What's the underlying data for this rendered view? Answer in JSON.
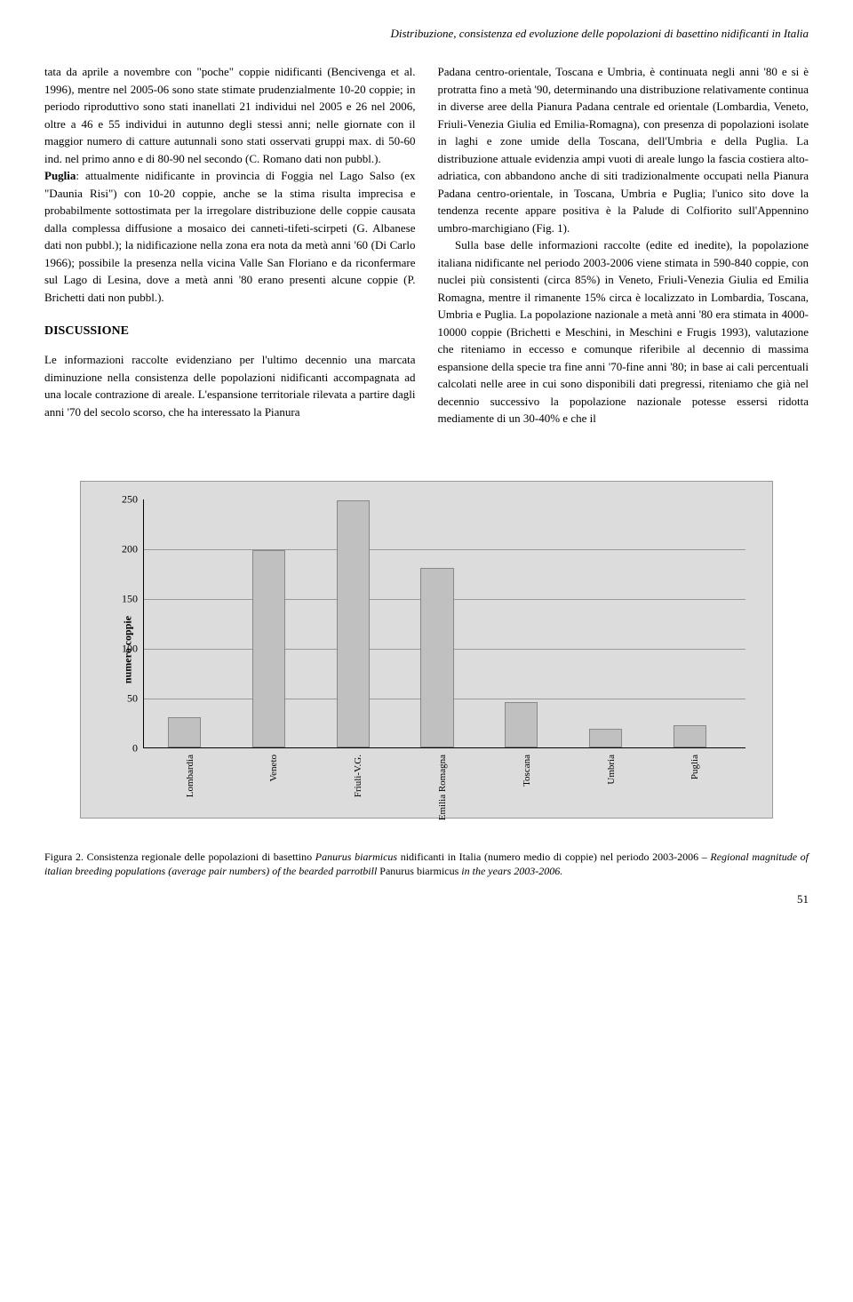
{
  "header_title": "Distribuzione, consistenza ed evoluzione delle popolazioni di basettino nidificanti in Italia",
  "left_column": {
    "para1": "tata da aprile a novembre con \"poche\" coppie nidificanti (Bencivenga et al. 1996), mentre nel 2005-06 sono state stimate prudenzialmente 10-20 coppie; in periodo riproduttivo sono stati inanellati 21 individui nel 2005 e 26 nel 2006, oltre a 46 e 55 individui in autunno degli stessi anni; nelle giornate con il maggior numero di catture autunnali sono stati osservati gruppi max. di 50-60 ind. nel primo anno e di 80-90 nel secondo (C. Romano dati non pubbl.).",
    "puglia_bold": "Puglia",
    "para2": ": attualmente nidificante in provincia di Foggia nel Lago Salso (ex \"Daunia Risi\") con 10-20 coppie, anche se la stima risulta imprecisa e probabilmente sottostimata per la irregolare distribuzione delle coppie causata dalla complessa diffusione a mosaico dei canneti-tifeti-scirpeti (G. Albanese dati non pubbl.); la nidificazione nella zona era nota da metà anni '60 (Di Carlo 1966); possibile la presenza nella vicina Valle San Floriano e da riconfermare sul Lago di Lesina, dove a metà anni '80 erano presenti alcune coppie (P. Brichetti dati non pubbl.).",
    "section_heading": "DISCUSSIONE",
    "para3": "Le informazioni raccolte evidenziano per l'ultimo decennio una marcata diminuzione nella consistenza delle popolazioni nidificanti accompagnata ad una locale contrazione di areale. L'espansione territoriale rilevata a partire dagli anni '70 del secolo scorso, che ha interessato la Pianura"
  },
  "right_column": {
    "para1": "Padana centro-orientale, Toscana e Umbria, è continuata negli anni '80 e si è protratta fino a metà '90, determinando una distribuzione relativamente continua in diverse aree della Pianura Padana centrale ed orientale (Lombardia, Veneto, Friuli-Venezia Giulia ed Emilia-Romagna), con presenza di popolazioni isolate in laghi e zone umide della Toscana, dell'Umbria e della Puglia. La distribuzione attuale evidenzia ampi vuoti di areale lungo la fascia costiera alto-adriatica, con abbandono anche di siti tradizionalmente occupati nella Pianura Padana centro-orientale, in Toscana, Umbria e Puglia; l'unico sito dove la tendenza recente appare positiva è la Palude di Colfiorito sull'Appennino umbro-marchigiano (Fig. 1).",
    "para2": "Sulla base delle informazioni raccolte (edite ed inedite), la popolazione italiana nidificante nel periodo 2003-2006 viene stimata in 590-840 coppie, con nuclei più consistenti (circa 85%) in Veneto, Friuli-Venezia Giulia ed Emilia Romagna, mentre il rimanente 15% circa è localizzato in Lombardia, Toscana, Umbria e Puglia. La popolazione nazionale a metà anni '80 era stimata in 4000-10000 coppie (Brichetti e Meschini, in Meschini e Frugis 1993), valutazione che riteniamo in eccesso e comunque riferibile al decennio di massima espansione della specie tra fine anni '70-fine anni '80; in base ai cali percentuali calcolati nelle aree in cui sono disponibili dati pregressi, riteniamo che già nel decennio successivo la popolazione nazionale potesse essersi ridotta mediamente di un 30-40% e che il"
  },
  "chart": {
    "type": "bar",
    "ylabel": "numero coppie",
    "ylim": [
      0,
      250
    ],
    "yticks": [
      0,
      50,
      100,
      150,
      200,
      250
    ],
    "categories": [
      "Lombardia",
      "Veneto",
      "Friuli-V.G.",
      "Emilia Romagna",
      "Toscana",
      "Umbria",
      "Puglia"
    ],
    "values": [
      30,
      198,
      248,
      180,
      45,
      18,
      22
    ],
    "bar_color": "#c0c0c0",
    "bar_border": "#888888",
    "background_color": "#dcdcdc",
    "grid_color": "#999999",
    "bar_width_pct": 5.5,
    "bar_spacing_pct": 14
  },
  "figure_caption": {
    "pre": "Figura 2. Consistenza regionale delle popolazioni di basettino ",
    "italic1": "Panurus biarmicus",
    "mid1": " nidificanti in Italia (numero medio di coppie) nel periodo 2003-2006 – ",
    "italic2": "Regional magnitude of italian breeding populations (average pair numbers) of the bearded parrotbill ",
    "roman": "Panurus biarmicus",
    "italic3": " in the years 2003-2006.",
    "end": ""
  },
  "page_number": "51"
}
